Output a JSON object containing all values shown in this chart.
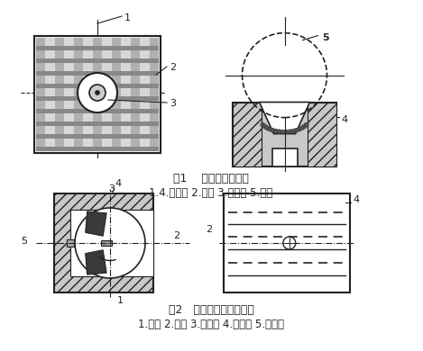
{
  "fig1_title": "图1    整体式卡瓦结构",
  "fig1_caption": "1.4.卡瓦齿 2.沟槽 3.螺栓孔 5.钻杆",
  "fig2_title": "图2   组合式卡瓦结构简图",
  "fig2_caption": "1.钻杆 2.挡板 3.卡瓦条 4.卡瓦体 5.螺栓孔",
  "line_color": "#222222",
  "gray_fill": "#c8c8c8",
  "dark_fill": "#555555",
  "white": "#ffffff",
  "font_size_label": 8,
  "font_size_title": 9,
  "font_size_caption": 8.5
}
